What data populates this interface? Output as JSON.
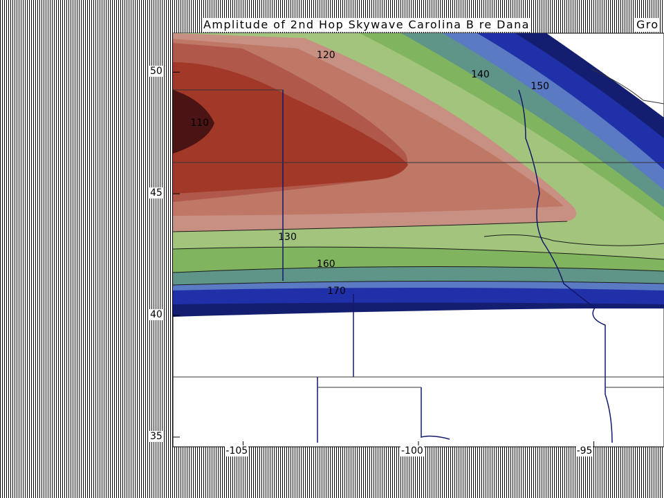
{
  "chart_data": {
    "type": "contour",
    "title": "Amplitude of 2nd Hop Skywave Carolina B re Dana",
    "title_extra": "Gro",
    "xlabel": "",
    "ylabel": "",
    "xlim": [
      -107,
      -93
    ],
    "ylim": [
      34.6,
      51.6
    ],
    "x_ticks": [
      {
        "value": -105,
        "label": "-105"
      },
      {
        "value": -100,
        "label": "-100"
      },
      {
        "value": -95,
        "label": "-95"
      }
    ],
    "y_ticks": [
      {
        "value": 50,
        "label": "50"
      },
      {
        "value": 45,
        "label": "45"
      },
      {
        "value": 40,
        "label": "40"
      },
      {
        "value": 35,
        "label": "35"
      }
    ],
    "contour_labels": [
      {
        "text": "110",
        "x": -106.5,
        "y": 47.9
      },
      {
        "text": "120",
        "x": -102.9,
        "y": 50.7
      },
      {
        "text": "130",
        "x": -104.0,
        "y": 43.2
      },
      {
        "text": "140",
        "x": -98.5,
        "y": 49.9
      },
      {
        "text": "150",
        "x": -96.8,
        "y": 49.4
      },
      {
        "text": "160",
        "x": -102.9,
        "y": 42.1
      },
      {
        "text": "170",
        "x": -102.6,
        "y": 41.0
      }
    ],
    "grid": true,
    "legend": "none",
    "fill_colors": {
      "darkest_core": "#4a1414",
      "inner": "#a13828",
      "middle": "#b0594a",
      "outer_red": "#c07866",
      "pinkish": "#c89082",
      "light_green": "#a2c47c",
      "green": "#80b45e",
      "teal": "#5f9488",
      "light_blue": "#5a7ac4",
      "blue": "#2030a8",
      "dark_navy": "#141e70"
    }
  }
}
